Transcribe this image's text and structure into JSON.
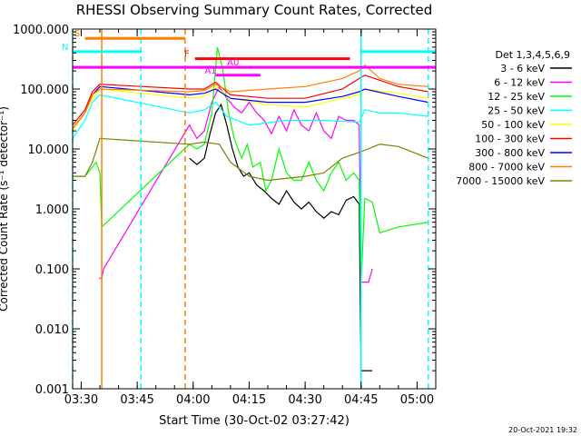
{
  "chart_data": {
    "type": "line",
    "title": "RHESSI Observing Summary Count Rates, Corrected",
    "xlabel": "Start Time (30-Oct-02 03:27:42)",
    "ylabel": "Corrected Count Rate (s⁻¹ detector⁻¹)",
    "y_scale": "log",
    "ylim": [
      0.001,
      1000
    ],
    "xlim": [
      "03:27:42",
      "05:05:00"
    ],
    "x_ticks": [
      "03:30",
      "03:45",
      "04:00",
      "04:15",
      "04:30",
      "04:45",
      "05:00"
    ],
    "y_ticks": [
      "1000.000",
      "100.000",
      "10.000",
      "1.000",
      "0.100",
      "0.010",
      "0.001"
    ],
    "legend_title": "Det 1,3,4,5,6,9",
    "legend_position": "right",
    "timestamp": "20-Oct-2021 19:32",
    "series": [
      {
        "name": "3 - 6 keV",
        "color": "#000000",
        "points": [
          [
            "03:59:00",
            7
          ],
          [
            "04:01:00",
            5.5
          ],
          [
            "04:03:00",
            7
          ],
          [
            "04:04:30",
            18
          ],
          [
            "04:06:00",
            40
          ],
          [
            "04:07:30",
            55
          ],
          [
            "04:09:00",
            25
          ],
          [
            "04:10:30",
            10
          ],
          [
            "04:12:00",
            5
          ],
          [
            "04:13:30",
            3.5
          ],
          [
            "04:15:00",
            4
          ],
          [
            "04:17:00",
            2.5
          ],
          [
            "04:19:00",
            2
          ],
          [
            "04:21:00",
            1.5
          ],
          [
            "04:23:00",
            1.2
          ],
          [
            "04:25:00",
            2
          ],
          [
            "04:27:00",
            1.3
          ],
          [
            "04:29:00",
            1
          ],
          [
            "04:31:00",
            1.3
          ],
          [
            "04:33:00",
            0.9
          ],
          [
            "04:35:00",
            0.7
          ],
          [
            "04:37:00",
            0.9
          ],
          [
            "04:39:00",
            0.8
          ],
          [
            "04:41:00",
            1.4
          ],
          [
            "04:43:00",
            1.6
          ],
          [
            "04:44:30",
            1.2
          ],
          [
            "04:45:00",
            0.002
          ],
          [
            "04:48:00",
            0.002
          ]
        ]
      },
      {
        "name": "6 - 12 keV",
        "color": "#ff00ff",
        "points": [
          [
            "03:34:45",
            0.07
          ],
          [
            "03:35:30",
            0.07
          ],
          [
            "03:36:00",
            0.1
          ],
          [
            "03:59:00",
            25
          ],
          [
            "04:01:00",
            15
          ],
          [
            "04:03:00",
            20
          ],
          [
            "04:05:00",
            60
          ],
          [
            "04:07:00",
            110
          ],
          [
            "04:09:00",
            70
          ],
          [
            "04:11:00",
            50
          ],
          [
            "04:13:00",
            40
          ],
          [
            "04:15:00",
            60
          ],
          [
            "04:17:00",
            40
          ],
          [
            "04:19:00",
            30
          ],
          [
            "04:21:00",
            18
          ],
          [
            "04:23:00",
            35
          ],
          [
            "04:25:00",
            20
          ],
          [
            "04:27:00",
            45
          ],
          [
            "04:29:00",
            25
          ],
          [
            "04:31:00",
            20
          ],
          [
            "04:33:00",
            40
          ],
          [
            "04:35:00",
            20
          ],
          [
            "04:37:00",
            15
          ],
          [
            "04:39:00",
            35
          ],
          [
            "04:41:00",
            30
          ],
          [
            "04:43:00",
            30
          ],
          [
            "04:44:30",
            25
          ],
          [
            "04:45:00",
            0.06
          ],
          [
            "04:47:00",
            0.06
          ],
          [
            "04:48:00",
            0.1
          ]
        ]
      },
      {
        "name": "12 - 25 keV",
        "color": "#00ff00",
        "points": [
          [
            "03:27:42",
            3.5
          ],
          [
            "03:31:00",
            3.5
          ],
          [
            "03:33:00",
            5
          ],
          [
            "03:34:00",
            6
          ],
          [
            "03:35:00",
            4
          ],
          [
            "03:35:30",
            0.5
          ],
          [
            "03:59:00",
            12
          ],
          [
            "04:01:00",
            10
          ],
          [
            "04:03:00",
            12
          ],
          [
            "04:05:00",
            40
          ],
          [
            "04:06:30",
            500
          ],
          [
            "04:08:00",
            200
          ],
          [
            "04:09:30",
            40
          ],
          [
            "04:11:00",
            15
          ],
          [
            "04:13:00",
            7
          ],
          [
            "04:14:30",
            12
          ],
          [
            "04:16:00",
            5
          ],
          [
            "04:18:00",
            6
          ],
          [
            "04:19:30",
            2
          ],
          [
            "04:21:00",
            3
          ],
          [
            "04:23:00",
            10
          ],
          [
            "04:25:00",
            4
          ],
          [
            "04:27:00",
            3
          ],
          [
            "04:29:00",
            3
          ],
          [
            "04:31:00",
            6
          ],
          [
            "04:33:00",
            3
          ],
          [
            "04:35:00",
            2
          ],
          [
            "04:37:00",
            4
          ],
          [
            "04:39:00",
            6
          ],
          [
            "04:41:00",
            3
          ],
          [
            "04:43:00",
            4
          ],
          [
            "04:44:30",
            3
          ],
          [
            "04:45:00",
            0.06
          ],
          [
            "04:46:00",
            1.5
          ],
          [
            "04:48:00",
            1.3
          ],
          [
            "04:50:00",
            0.4
          ],
          [
            "04:55:00",
            0.5
          ],
          [
            "05:03:00",
            0.6
          ]
        ]
      },
      {
        "name": "25 - 50 keV",
        "color": "#00ffff",
        "points": [
          [
            "03:27:42",
            15
          ],
          [
            "03:31:00",
            30
          ],
          [
            "03:33:00",
            60
          ],
          [
            "03:35:00",
            80
          ],
          [
            "03:59:00",
            40
          ],
          [
            "04:03:00",
            45
          ],
          [
            "04:06:00",
            60
          ],
          [
            "04:09:00",
            35
          ],
          [
            "04:15:00",
            25
          ],
          [
            "04:25:00",
            30
          ],
          [
            "04:35:00",
            30
          ],
          [
            "04:44:30",
            28
          ],
          [
            "04:46:00",
            45
          ],
          [
            "04:50:00",
            40
          ],
          [
            "04:55:00",
            40
          ],
          [
            "05:03:00",
            35
          ]
        ]
      },
      {
        "name": "50 - 100 keV",
        "color": "#ffff00",
        "points": [
          [
            "03:27:42",
            20
          ],
          [
            "03:31:00",
            40
          ],
          [
            "03:33:00",
            70
          ],
          [
            "03:35:00",
            100
          ],
          [
            "03:59:00",
            70
          ],
          [
            "04:03:00",
            75
          ],
          [
            "04:06:00",
            110
          ],
          [
            "04:10:00",
            70
          ],
          [
            "04:20:00",
            55
          ],
          [
            "04:30:00",
            50
          ],
          [
            "04:40:00",
            70
          ],
          [
            "04:44:30",
            80
          ],
          [
            "04:46:00",
            100
          ],
          [
            "04:55:00",
            85
          ],
          [
            "05:03:00",
            70
          ]
        ]
      },
      {
        "name": "100 - 300 keV",
        "color": "#ff0000",
        "points": [
          [
            "03:27:42",
            25
          ],
          [
            "03:31:00",
            45
          ],
          [
            "03:33:00",
            90
          ],
          [
            "03:35:00",
            120
          ],
          [
            "03:59:00",
            100
          ],
          [
            "04:03:00",
            100
          ],
          [
            "04:06:00",
            130
          ],
          [
            "04:10:00",
            80
          ],
          [
            "04:20:00",
            70
          ],
          [
            "04:30:00",
            70
          ],
          [
            "04:40:00",
            100
          ],
          [
            "04:44:30",
            150
          ],
          [
            "04:46:00",
            170
          ],
          [
            "04:55:00",
            110
          ],
          [
            "05:03:00",
            90
          ]
        ]
      },
      {
        "name": "300 - 800 keV",
        "color": "#0000ff",
        "points": [
          [
            "03:27:42",
            22
          ],
          [
            "03:31:00",
            40
          ],
          [
            "03:33:00",
            80
          ],
          [
            "03:35:00",
            110
          ],
          [
            "03:59:00",
            80
          ],
          [
            "04:03:00",
            85
          ],
          [
            "04:06:00",
            100
          ],
          [
            "04:10:00",
            70
          ],
          [
            "04:20:00",
            60
          ],
          [
            "04:30:00",
            60
          ],
          [
            "04:40:00",
            75
          ],
          [
            "04:44:30",
            90
          ],
          [
            "04:46:00",
            100
          ],
          [
            "04:55:00",
            75
          ],
          [
            "05:03:00",
            60
          ]
        ]
      },
      {
        "name": "800 - 7000 keV",
        "color": "#ff8000",
        "points": [
          [
            "03:27:42",
            22
          ],
          [
            "03:31:00",
            40
          ],
          [
            "03:33:00",
            80
          ],
          [
            "03:35:00",
            100
          ],
          [
            "03:59:00",
            90
          ],
          [
            "04:03:00",
            95
          ],
          [
            "04:06:00",
            120
          ],
          [
            "04:10:00",
            90
          ],
          [
            "04:20:00",
            100
          ],
          [
            "04:30:00",
            110
          ],
          [
            "04:40:00",
            150
          ],
          [
            "04:44:30",
            200
          ],
          [
            "04:46:00",
            250
          ],
          [
            "04:50:00",
            150
          ],
          [
            "04:55:00",
            120
          ],
          [
            "05:03:00",
            110
          ]
        ]
      },
      {
        "name": "7000 - 15000 keV",
        "color": "#808000",
        "points": [
          [
            "03:27:42",
            3.5
          ],
          [
            "03:31:00",
            3.5
          ],
          [
            "03:33:00",
            6
          ],
          [
            "03:35:00",
            15
          ],
          [
            "03:59:00",
            12
          ],
          [
            "04:03:00",
            13
          ],
          [
            "04:07:00",
            12
          ],
          [
            "04:10:00",
            6
          ],
          [
            "04:15:00",
            3.5
          ],
          [
            "04:20:00",
            3
          ],
          [
            "04:30:00",
            3.5
          ],
          [
            "04:35:00",
            4
          ],
          [
            "04:40:00",
            7
          ],
          [
            "04:45:00",
            9
          ],
          [
            "04:50:00",
            12
          ],
          [
            "04:55:00",
            11
          ],
          [
            "05:03:00",
            7
          ]
        ]
      }
    ],
    "vertical_lines": [
      {
        "time": "03:27:42",
        "color": "#00ffff",
        "dash": true
      },
      {
        "time": "03:35:30",
        "color": "#ff8000",
        "dash": false
      },
      {
        "time": "03:46:00",
        "color": "#00ffff",
        "dash": true
      },
      {
        "time": "03:57:50",
        "color": "#ff8000",
        "dash": true
      },
      {
        "time": "04:45:00",
        "color": "#00ffff",
        "dash": false
      },
      {
        "time": "05:03:00",
        "color": "#00ffff",
        "dash": true
      }
    ],
    "annotation_bars": [
      {
        "label": "S",
        "color": "#ff8000",
        "start": "03:31:00",
        "end": "03:57:50",
        "level": 700
      },
      {
        "label": "N",
        "color": "#00ffff",
        "start": "03:27:42",
        "end": "03:46:00",
        "level": 420
      },
      {
        "label": "",
        "color": "#00ffff",
        "start": "04:45:00",
        "end": "05:05:00",
        "level": 420
      },
      {
        "label": "F",
        "color": "#ff0000",
        "start": "04:00:30",
        "end": "04:42:00",
        "level": 320
      },
      {
        "label": "",
        "color": "#ff00ff",
        "start": "03:27:42",
        "end": "05:05:00",
        "level": 230
      },
      {
        "label": "A0",
        "color": "#ff00ff",
        "start": "04:12:00",
        "end": "04:12:30",
        "level": 230
      },
      {
        "label": "",
        "color": "#ff00ff",
        "start": "04:15:00",
        "end": "04:15:20",
        "level": 230
      },
      {
        "label": "A1",
        "color": "#ff00ff",
        "start": "04:06:00",
        "end": "04:18:00",
        "level": 170
      }
    ]
  }
}
